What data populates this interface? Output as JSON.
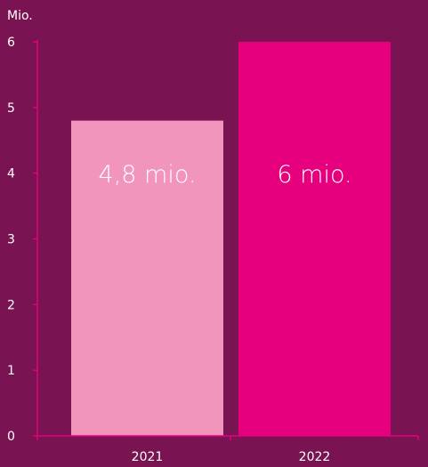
{
  "chart_data": {
    "type": "bar",
    "unit_label": "Mio.",
    "categories": [
      "2021",
      "2022"
    ],
    "values": [
      4.8,
      6
    ],
    "data_labels": [
      "4,8 mio.",
      "6 mio."
    ],
    "bar_colors": [
      "#f295bd",
      "#e6007e"
    ],
    "ylim": [
      0,
      6
    ],
    "yticks": [
      "0",
      "1",
      "2",
      "3",
      "4",
      "5",
      "6"
    ],
    "grid": false,
    "legend": "none",
    "title": "",
    "xlabel": "",
    "ylabel": ""
  },
  "colors": {
    "background": "#7a1352",
    "axis": "#e6007e",
    "text": "#ffffff"
  }
}
